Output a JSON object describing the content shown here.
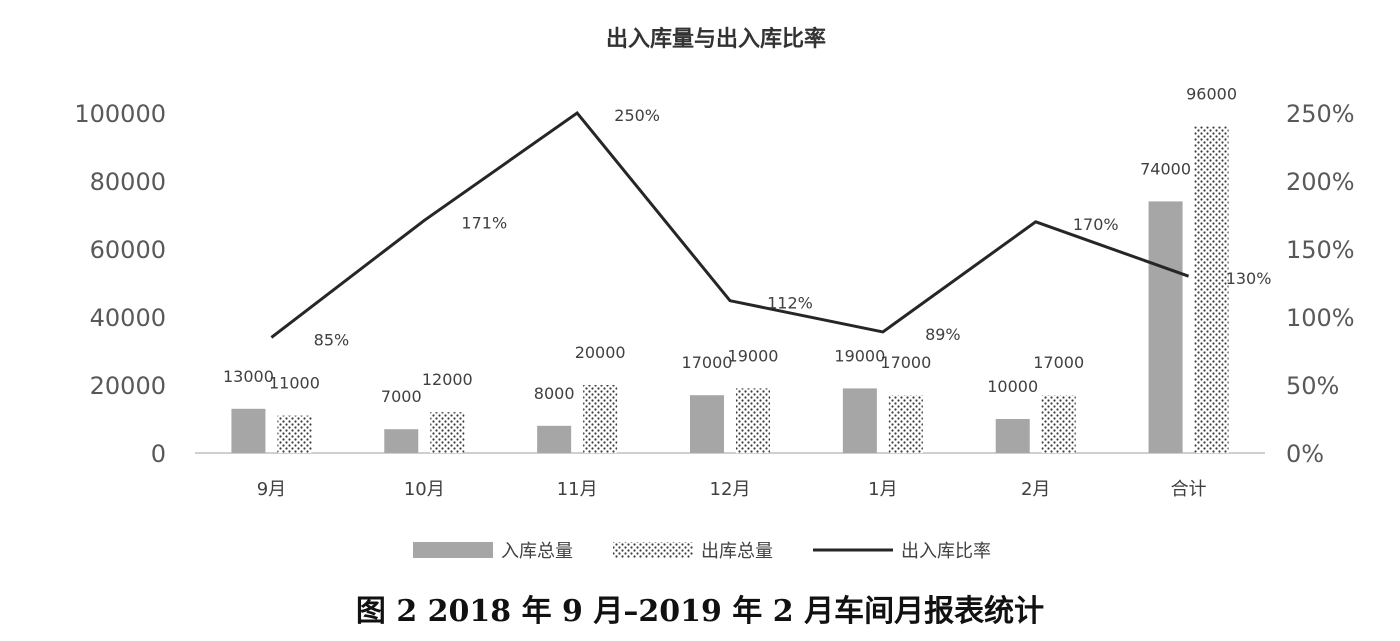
{
  "caption": "图 2  2018 年 9 月–2019 年 2 月车间月报表统计",
  "chart_data": {
    "type": "bar",
    "title": "出入库量与出入库比率",
    "categories": [
      "9月",
      "10月",
      "11月",
      "12月",
      "1月",
      "2月",
      "合计"
    ],
    "series": [
      {
        "name": "入库总量",
        "kind": "bar",
        "axis": "left",
        "color": "#a6a6a6",
        "pattern": "solid",
        "values": [
          13000,
          7000,
          8000,
          17000,
          19000,
          10000,
          74000
        ],
        "labels": [
          "13000",
          "7000",
          "8000",
          "17000",
          "19000",
          "10000",
          "74000"
        ]
      },
      {
        "name": "出库总量",
        "kind": "bar",
        "axis": "left",
        "color": "#404040",
        "pattern": "dots",
        "values": [
          11000,
          12000,
          20000,
          19000,
          17000,
          17000,
          96000
        ],
        "labels": [
          "11000",
          "12000",
          "20000",
          "19000",
          "17000",
          "17000",
          "96000"
        ]
      },
      {
        "name": "出入库比率",
        "kind": "line",
        "axis": "right",
        "color": "#262626",
        "values": [
          85,
          171,
          250,
          112,
          89,
          170,
          130
        ],
        "labels": [
          "85%",
          "171%",
          "250%",
          "112%",
          "89%",
          "170%",
          "130%"
        ]
      }
    ],
    "y_left": {
      "min": 0,
      "max": 100000,
      "ticks": [
        "0",
        "20000",
        "40000",
        "60000",
        "80000",
        "100000"
      ]
    },
    "y_right": {
      "min": 0,
      "max": 250,
      "ticks": [
        "0%",
        "50%",
        "100%",
        "150%",
        "200%",
        "250%"
      ]
    },
    "grid": false,
    "legend_position": "bottom"
  }
}
